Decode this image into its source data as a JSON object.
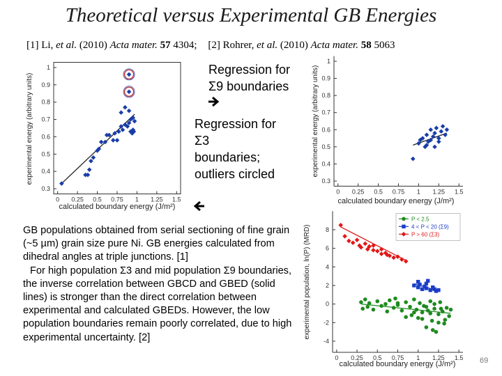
{
  "slide": {
    "title": "Theoretical versus Experimental GB Energies",
    "references": [
      {
        "label": "[1] Li,",
        "etal": "et al.",
        "year": "(2010)",
        "journal": "Acta mater.",
        "volume": "57",
        "page": "4304;"
      },
      {
        "label": "[2] Rohrer,",
        "etal": "et al.",
        "year": "(2010)",
        "journal": "Acta mater.",
        "volume": "58",
        "page": "5063"
      }
    ],
    "annotation_sigma9": "Regression for Σ9 boundaries",
    "annotation_sigma3": "Regression for Σ3 boundaries; outliers circled",
    "body": [
      "GB populations obtained from serial sectioning of fine grain (~5 µm) grain size pure Ni.  GB energies calculated from dihedral angles at triple junctions. [1]",
      "For high population Σ3 and mid population Σ9 boundaries, the inverse correlation between GBCD and GBED (solid lines) is stronger than the direct correlation between experimental and calculated GBEDs. However, the low population boundaries remain poorly correlated, due to high experimental uncertainty. [2]"
    ],
    "page_number": "69"
  },
  "chart_data": [
    {
      "type": "scatter",
      "x_label": "calculated boundary energy (J/m²)",
      "y_label": "experimental energy (arbitrary units)",
      "xlim": [
        -0.05,
        1.55
      ],
      "ylim": [
        0.27,
        1.03
      ],
      "xticks": [
        0,
        0.25,
        0.5,
        0.75,
        1,
        1.25,
        1.5
      ],
      "yticks": [
        0.3,
        0.4,
        0.5,
        0.6,
        0.7,
        0.8,
        0.9,
        1
      ],
      "series": [
        {
          "color": "#1a3da8",
          "marker": "diamond",
          "x": [
            0.05,
            0.35,
            0.38,
            0.4,
            0.42,
            0.45,
            0.5,
            0.52,
            0.55,
            0.6,
            0.62,
            0.65,
            0.7,
            0.72,
            0.75,
            0.77,
            0.8,
            0.82,
            0.85,
            0.88,
            0.9,
            0.92,
            0.95,
            0.97,
            0.95,
            0.8,
            0.85,
            0.9,
            0.92,
            0.94,
            0.96
          ],
          "values": [
            0.33,
            0.38,
            0.38,
            0.41,
            0.46,
            0.48,
            0.52,
            0.53,
            0.57,
            0.57,
            0.61,
            0.61,
            0.58,
            0.62,
            0.58,
            0.63,
            0.66,
            0.64,
            0.67,
            0.66,
            0.68,
            0.63,
            0.64,
            0.69,
            0.71,
            0.74,
            0.77,
            0.75,
            0.7,
            0.62,
            0.63
          ]
        },
        {
          "color": "#1a3da8",
          "marker": "diamond",
          "ring_color": "#c62828",
          "x": [
            0.9,
            0.9
          ],
          "values": [
            0.96,
            0.86
          ]
        }
      ],
      "fit_lines": [
        {
          "color": "#222222",
          "x": [
            0.05,
            0.97
          ],
          "values": [
            0.33,
            0.73
          ]
        }
      ]
    },
    {
      "type": "scatter",
      "x_label": "calculated boundary energy (J/m²)",
      "y_label": "experimental energy (arbitrary units)",
      "xlim": [
        -0.05,
        1.55
      ],
      "ylim": [
        0.27,
        1.03
      ],
      "xticks": [
        0,
        0.25,
        0.5,
        0.75,
        1,
        1.25,
        1.5
      ],
      "yticks": [
        0.3,
        0.4,
        0.5,
        0.6,
        0.7,
        0.8,
        0.9,
        1
      ],
      "series": [
        {
          "color": "#1a3da8",
          "marker": "diamond",
          "x": [
            0.93,
            1.0,
            1.02,
            1.05,
            1.08,
            1.1,
            1.12,
            1.15,
            1.18,
            1.2,
            1.22,
            1.25,
            1.28,
            1.3,
            1.33,
            1.35,
            1.1,
            1.15,
            1.2,
            1.25
          ],
          "values": [
            0.43,
            0.52,
            0.54,
            0.55,
            0.5,
            0.57,
            0.53,
            0.6,
            0.56,
            0.58,
            0.61,
            0.55,
            0.59,
            0.62,
            0.57,
            0.6,
            0.51,
            0.54,
            0.5,
            0.53
          ]
        }
      ],
      "fit_lines": [
        {
          "color": "#222222",
          "x": [
            0.93,
            1.35
          ],
          "values": [
            0.51,
            0.58
          ]
        }
      ]
    },
    {
      "type": "scatter",
      "x_label": "calculated boundary energy (J/m²)",
      "y_label": "experimental population, ln(P) (MRD)",
      "xlim": [
        -0.05,
        1.55
      ],
      "ylim": [
        -5.2,
        10
      ],
      "xticks": [
        0,
        0.25,
        0.5,
        0.75,
        1,
        1.25,
        1.5
      ],
      "yticks": [
        -4,
        -2,
        0,
        2,
        4,
        6,
        8
      ],
      "legend": "upper right",
      "series": [
        {
          "name": "P < 2.5",
          "color": "#1e8a1e",
          "marker": "circle",
          "x": [
            0.3,
            0.32,
            0.35,
            0.38,
            0.4,
            0.45,
            0.5,
            0.55,
            0.6,
            0.62,
            0.65,
            0.7,
            0.72,
            0.75,
            0.8,
            0.85,
            0.9,
            0.92,
            0.95,
            0.98,
            1.0,
            1.02,
            1.05,
            1.07,
            1.1,
            1.12,
            1.15,
            1.17,
            1.2,
            1.22,
            1.25,
            1.27,
            1.3,
            1.32,
            1.35,
            1.38,
            1.4,
            1.15,
            1.2,
            1.25,
            1.1,
            1.05,
            0.95,
            0.85,
            0.75,
            1.28,
            1.33,
            1.18
          ],
          "values": [
            0.2,
            -0.5,
            0.5,
            -0.3,
            0.1,
            -0.6,
            0.3,
            -0.2,
            0.0,
            -0.8,
            0.4,
            -0.4,
            0.6,
            -0.1,
            -0.7,
            0.2,
            -0.3,
            -1.2,
            0.5,
            -0.6,
            -1.5,
            0.1,
            -0.9,
            -0.2,
            -2.5,
            -0.7,
            0.3,
            -1.8,
            -0.5,
            -3.0,
            -1.1,
            0.2,
            -0.8,
            -2.1,
            -0.4,
            -1.3,
            -0.6,
            -1.0,
            0.0,
            -2.0,
            -0.3,
            -1.6,
            -0.9,
            -1.4,
            0.1,
            -0.5,
            -1.7,
            -2.8
          ]
        },
        {
          "name": "4 < P < 20 (Σ9)",
          "color": "#1a3dc8",
          "marker": "square",
          "x": [
            0.95,
            1.0,
            1.02,
            1.05,
            1.08,
            1.1,
            1.12,
            1.15,
            1.18,
            1.2,
            1.22,
            1.25,
            1.1,
            1.0
          ],
          "values": [
            2.0,
            1.8,
            2.1,
            1.6,
            1.9,
            1.7,
            2.5,
            1.5,
            1.8,
            1.6,
            1.4,
            1.5,
            2.2,
            2.4
          ]
        },
        {
          "name": "P > 60 (Σ3)",
          "color": "#e01818",
          "marker": "diamond",
          "x": [
            0.05,
            0.1,
            0.15,
            0.2,
            0.25,
            0.28,
            0.3,
            0.35,
            0.38,
            0.4,
            0.45,
            0.5,
            0.55,
            0.6,
            0.65,
            0.7,
            0.75,
            0.8,
            0.85,
            0.45,
            0.55,
            0.62
          ],
          "values": [
            8.5,
            7.3,
            6.8,
            6.6,
            6.9,
            6.3,
            6.1,
            6.5,
            5.9,
            6.2,
            5.8,
            5.7,
            5.4,
            5.5,
            5.2,
            5.0,
            5.1,
            4.8,
            4.6,
            6.3,
            5.9,
            5.3
          ]
        }
      ],
      "fit_lines": [
        {
          "color": "#1e8a1e",
          "x": [
            0.3,
            1.4
          ],
          "values": [
            0.0,
            -1.0
          ]
        },
        {
          "color": "#1a3dc8",
          "x": [
            0.95,
            1.25
          ],
          "values": [
            2.2,
            1.4
          ]
        },
        {
          "color": "#e01818",
          "x": [
            0.05,
            0.85
          ],
          "values": [
            8.3,
            4.7
          ]
        }
      ]
    }
  ]
}
